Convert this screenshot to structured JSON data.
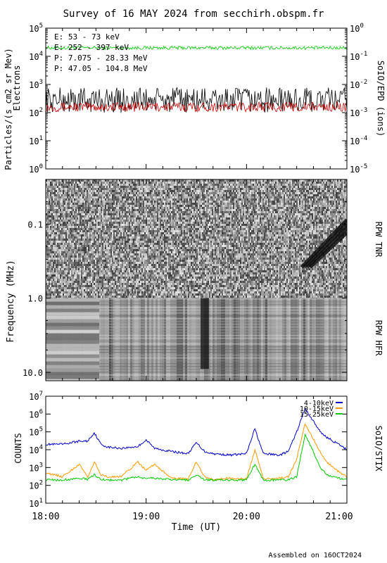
{
  "title": "Survey of 16 MAY 2024 from secchirh.obspm.fr",
  "footer": "Assembled on 16OCT2024",
  "x_axis": {
    "label": "Time (UT)",
    "range": [
      "18:00",
      "21:00"
    ],
    "tick_labels": [
      "18:00",
      "19:00",
      "20:00",
      "21:00"
    ]
  },
  "chart_data": [
    {
      "type": "line",
      "panel": "SoIO/EPD",
      "ylabel": "Particles/(s cm2 sr Mev)",
      "ylabel2": "Electrons",
      "right_label": "SoIO/EPD (ions)",
      "log_y": true,
      "ylim": [
        1,
        100000
      ],
      "ylim_right": [
        1e-05,
        1
      ],
      "left_tick_labels": [
        {
          "base": "10",
          "exp": "0"
        },
        {
          "base": "10",
          "exp": "1"
        },
        {
          "base": "10",
          "exp": "2"
        },
        {
          "base": "10",
          "exp": "3"
        },
        {
          "base": "10",
          "exp": "4"
        },
        {
          "base": "10",
          "exp": "5"
        }
      ],
      "right_tick_labels": [
        {
          "base": "10",
          "exp": "-5"
        },
        {
          "base": "10",
          "exp": "-4"
        },
        {
          "base": "10",
          "exp": "-3"
        },
        {
          "base": "10",
          "exp": "-2"
        },
        {
          "base": "10",
          "exp": "-1"
        },
        {
          "base": "10",
          "exp": "0"
        }
      ],
      "legend": [
        {
          "text": "E: 53 - 73 keV",
          "color": "#00c800"
        },
        {
          "text": "E: 252 - 397 keV",
          "color": "#c80000"
        },
        {
          "text": "P: 7.075 - 28.33 MeV",
          "color": "#000000"
        },
        {
          "text": "P: 47.05 - 104.8 MeV",
          "color": "#0000c0"
        }
      ],
      "series": [
        {
          "name": "E: 53 - 73 keV",
          "color": "#00c800",
          "axis": "left",
          "approx_level": 20000
        },
        {
          "name": "E: 252 - 397 keV",
          "color": "#c80000",
          "axis": "left",
          "approx_level": 160
        },
        {
          "name": "P: 7.075 - 28.33 MeV",
          "color": "#000000",
          "axis": "right",
          "approx_level": 0.0025
        }
      ]
    },
    {
      "type": "heatmap",
      "panel": "RPW",
      "ylabel": "Frequency (MHz)",
      "log_y": true,
      "y_inverted": true,
      "ylim": [
        0.025,
        13
      ],
      "y_tick_labels": [
        "0.1",
        "1.0",
        "10.0"
      ],
      "sections": [
        {
          "name": "RPW TNR",
          "range": [
            0.025,
            1.0
          ]
        },
        {
          "name": "RPW HFR",
          "range": [
            1.0,
            13
          ]
        }
      ],
      "features": [
        {
          "label": "radio bursts",
          "time": "20:35",
          "freq_range": [
            0.1,
            0.4
          ]
        },
        {
          "label": "burst activity",
          "time": "19:35",
          "freq_range": [
            1.0,
            9.0
          ]
        }
      ]
    },
    {
      "type": "line",
      "panel": "SoIO/STIX",
      "ylabel": "COUNTS",
      "right_label": "SoIO/STIX",
      "log_y": true,
      "ylim": [
        10,
        10000000
      ],
      "y_tick_labels": [
        {
          "base": "10",
          "exp": "1"
        },
        {
          "base": "10",
          "exp": "2"
        },
        {
          "base": "10",
          "exp": "3"
        },
        {
          "base": "10",
          "exp": "4"
        },
        {
          "base": "10",
          "exp": "5"
        },
        {
          "base": "10",
          "exp": "6"
        },
        {
          "base": "10",
          "exp": "7"
        }
      ],
      "legend": [
        {
          "text": "4-10keV",
          "color": "#0000c8"
        },
        {
          "text": "10-15keV",
          "color": "#ff9900"
        },
        {
          "text": "15-25keV",
          "color": "#00c800"
        }
      ],
      "x_minutes": [
        0,
        10,
        20,
        25,
        29,
        33,
        37,
        45,
        55,
        60,
        65,
        75,
        85,
        90,
        95,
        100,
        110,
        120,
        125,
        130,
        140,
        145,
        150,
        155,
        160,
        164,
        168,
        175,
        180
      ],
      "series": [
        {
          "name": "4-10keV",
          "color": "#0000c8",
          "values": [
            20000,
            20000,
            30000,
            30000,
            90000,
            20000,
            14000,
            12000,
            15000,
            35000,
            12000,
            8000,
            6000,
            25000,
            8000,
            6000,
            5000,
            6000,
            150000,
            6000,
            5000,
            8000,
            100000,
            2000000,
            400000,
            100000,
            50000,
            20000,
            10000
          ]
        },
        {
          "name": "10-15keV",
          "color": "#ff9900",
          "values": [
            500,
            300,
            1500,
            300,
            2000,
            400,
            300,
            300,
            2000,
            700,
            1500,
            250,
            230,
            2000,
            300,
            200,
            250,
            230,
            10000,
            230,
            250,
            300,
            3000,
            300000,
            40000,
            8000,
            2000,
            600,
            300
          ]
        },
        {
          "name": "15-25keV",
          "color": "#00c800",
          "values": [
            200,
            200,
            250,
            220,
            400,
            220,
            200,
            200,
            300,
            250,
            260,
            200,
            200,
            400,
            200,
            200,
            200,
            200,
            1500,
            200,
            200,
            200,
            300,
            70000,
            8000,
            1000,
            400,
            250,
            220
          ]
        }
      ]
    }
  ]
}
